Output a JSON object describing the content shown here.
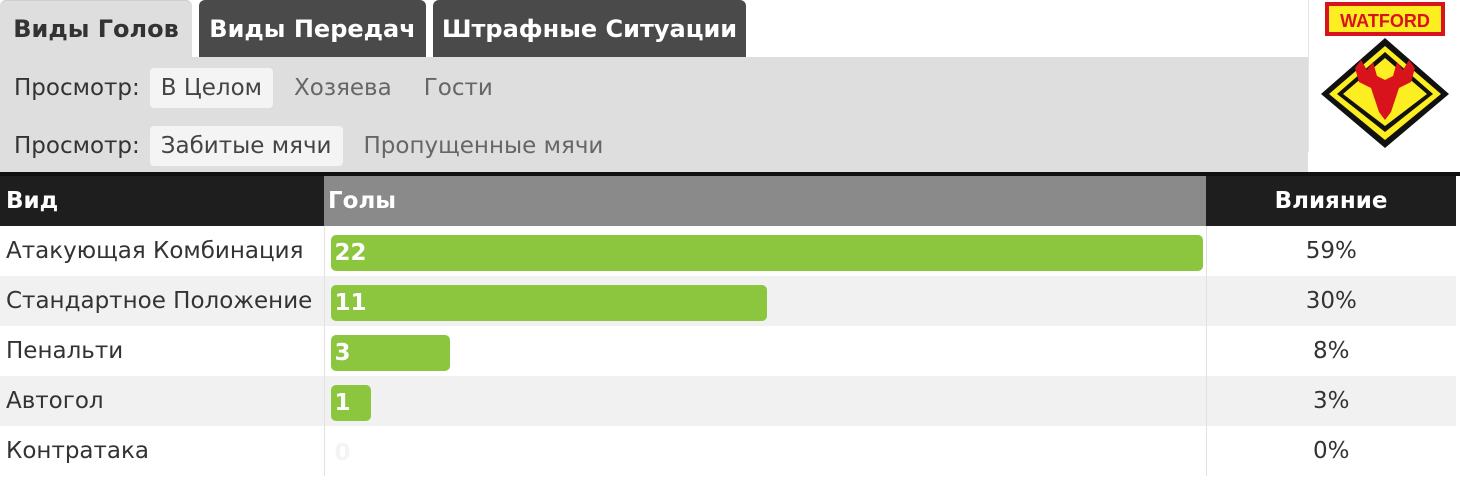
{
  "tabs": [
    {
      "label": "Виды Голов",
      "active": true
    },
    {
      "label": "Виды Передач",
      "active": false
    },
    {
      "label": "Штрафные Ситуации",
      "active": false
    }
  ],
  "filters": {
    "view_label": "Просмотр:",
    "location_options": [
      "В Целом",
      "Хозяева",
      "Гости"
    ],
    "location_selected": "В Целом",
    "goal_options": [
      "Забитые мячи",
      "Пропущенные мячи"
    ],
    "goal_selected": "Забитые мячи"
  },
  "logo": {
    "text": "WATFORD",
    "colors": {
      "red": "#d9131b",
      "yellow": "#fcee21",
      "black": "#111111"
    }
  },
  "table": {
    "headers": {
      "type": "Вид",
      "goals": "Голы",
      "influence": "Влияние"
    },
    "max_goals": 22,
    "rows": [
      {
        "type": "Атакующая Комбинация",
        "goals": 22,
        "influence": "59%"
      },
      {
        "type": "Стандартное Положение",
        "goals": 11,
        "influence": "30%"
      },
      {
        "type": "Пенальти",
        "goals": 3,
        "influence": "8%"
      },
      {
        "type": "Автогол",
        "goals": 1,
        "influence": "3%"
      },
      {
        "type": "Контратака",
        "goals": 0,
        "influence": "0%"
      }
    ]
  },
  "colors": {
    "bar": "#8cc63f",
    "header_dark": "#1e1e1e",
    "header_mid": "#8a8a8a",
    "tab_inactive": "#4a4a4a",
    "panel": "#dedede"
  }
}
